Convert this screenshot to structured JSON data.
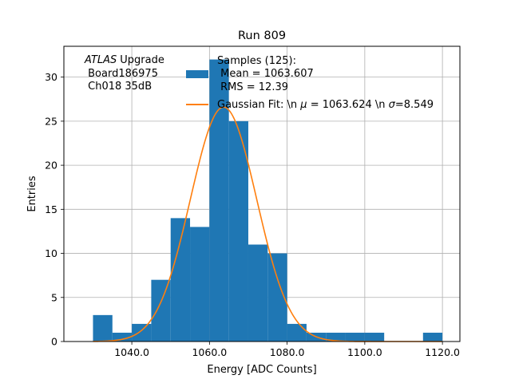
{
  "chart_data": {
    "type": "bar",
    "title": "Run 809",
    "xlabel": "Energy [ADC Counts]",
    "ylabel": "Entries",
    "xlim": [
      1022.5,
      1124.5
    ],
    "ylim": [
      0,
      33.5
    ],
    "grid": true,
    "xticks": [
      1040.0,
      1060.0,
      1080.0,
      1100.0,
      1120.0
    ],
    "xtick_labels": [
      "1040.0",
      "1060.0",
      "1080.0",
      "1100.0",
      "1120.0"
    ],
    "yticks": [
      0,
      5,
      10,
      15,
      20,
      25,
      30
    ],
    "ytick_labels": [
      "0",
      "5",
      "10",
      "15",
      "20",
      "25",
      "30"
    ],
    "bin_edges": [
      1030,
      1035,
      1040,
      1045,
      1050,
      1055,
      1060,
      1065,
      1070,
      1075,
      1080,
      1085,
      1090,
      1095,
      1100,
      1105,
      1110,
      1115,
      1120
    ],
    "series": [
      {
        "name": "Samples (125):\n Mean = 1063.607\n RMS = 12.39",
        "kind": "histogram",
        "color": "#1f77b4",
        "values": [
          3,
          1,
          2,
          7,
          14,
          13,
          32,
          25,
          11,
          10,
          2,
          1,
          1,
          1,
          1,
          0,
          0,
          1
        ]
      },
      {
        "name": "Gaussian Fit: \\n $\\mu$ = 1063.624 \\n $\\sigma$=8.549",
        "kind": "line",
        "color": "#ff7f0e",
        "mu": 1063.624,
        "sigma": 8.549,
        "amplitude": 26.6,
        "x_range": [
          1030,
          1120
        ]
      }
    ],
    "annotation": {
      "italic": "ATLAS",
      "lines": [
        "Upgrade",
        " Board186975",
        " Ch018 35dB"
      ]
    },
    "legend": {
      "placement": "top-right",
      "entries": [
        {
          "label_lines": [
            "Samples (125):",
            " Mean = 1063.607",
            " RMS = 12.39"
          ],
          "swatch": "patch",
          "color": "#1f77b4"
        },
        {
          "label_prefix": "Gaussian Fit: \\n ",
          "mu_symbol": "μ",
          "label_mid": " = 1063.624 \\n ",
          "sigma_symbol": "σ",
          "label_suffix": "=8.549",
          "swatch": "line",
          "color": "#ff7f0e"
        }
      ]
    }
  }
}
